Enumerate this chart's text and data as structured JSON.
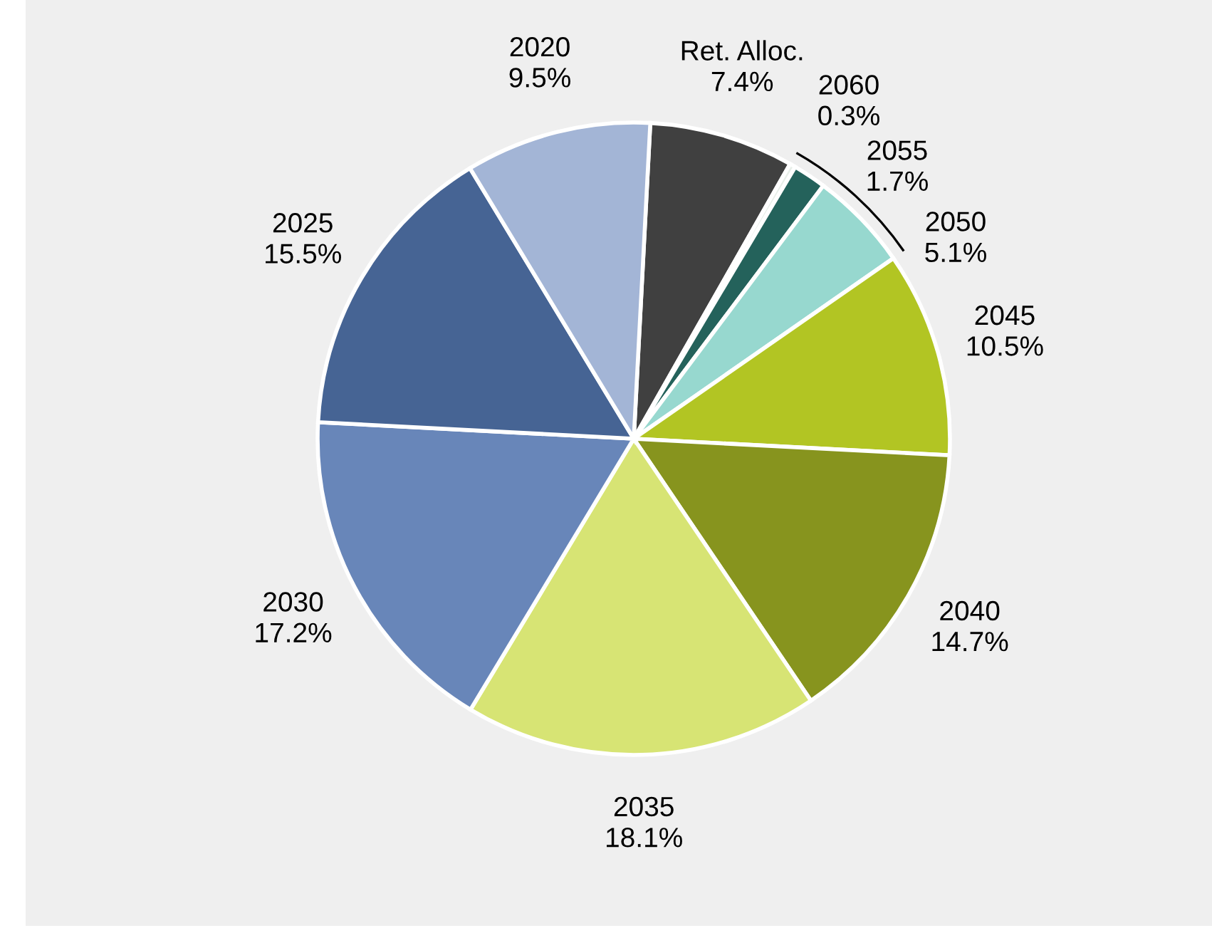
{
  "chart_data": {
    "type": "pie",
    "categories": [
      "Ret. Alloc.",
      "2060",
      "2055",
      "2050",
      "2045",
      "2040",
      "2035",
      "2030",
      "2025",
      "2020"
    ],
    "values": [
      7.4,
      0.3,
      1.7,
      5.1,
      10.5,
      14.7,
      18.1,
      17.2,
      15.5,
      9.5
    ],
    "value_labels": [
      "7.4%",
      "0.3%",
      "1.7%",
      "5.1%",
      "10.5%",
      "14.7%",
      "18.1%",
      "17.2%",
      "15.5%",
      "9.5%"
    ],
    "colors": [
      "#404040",
      "#e8efe9",
      "#24625b",
      "#97d8cf",
      "#b2c523",
      "#87941e",
      "#d7e474",
      "#6886b9",
      "#466494",
      "#a3b5d6"
    ]
  }
}
